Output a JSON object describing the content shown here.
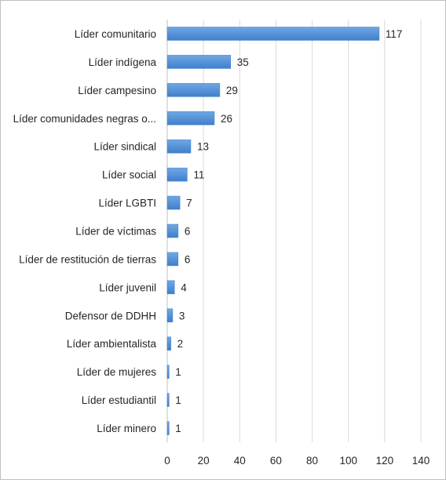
{
  "chart_data": {
    "type": "bar",
    "orientation": "horizontal",
    "title": "",
    "xlabel": "",
    "ylabel": "",
    "categories": [
      "Líder comunitario",
      "Líder indígena",
      "Líder campesino",
      "Líder comunidades negras o...",
      "Líder sindical",
      "Líder social",
      "Líder LGBTI",
      "Líder de víctimas",
      "Líder de restitución de tierras",
      "Líder juvenil",
      "Defensor de DDHH",
      "Líder ambientalista",
      "Líder de mujeres",
      "Líder estudiantil",
      "Líder minero"
    ],
    "values": [
      117,
      35,
      29,
      26,
      13,
      11,
      7,
      6,
      6,
      4,
      3,
      2,
      1,
      1,
      1
    ],
    "xlim": [
      0,
      140
    ],
    "xticks": [
      0,
      20,
      40,
      60,
      80,
      100,
      120,
      140
    ],
    "grid": "vertical",
    "legend": "none",
    "colors": {
      "bar_light": "#6fa8e3",
      "bar_dark": "#3f7fcb",
      "gridline": "#d9d9d9",
      "axis": "#bfbfbf",
      "text": "#262626"
    }
  }
}
